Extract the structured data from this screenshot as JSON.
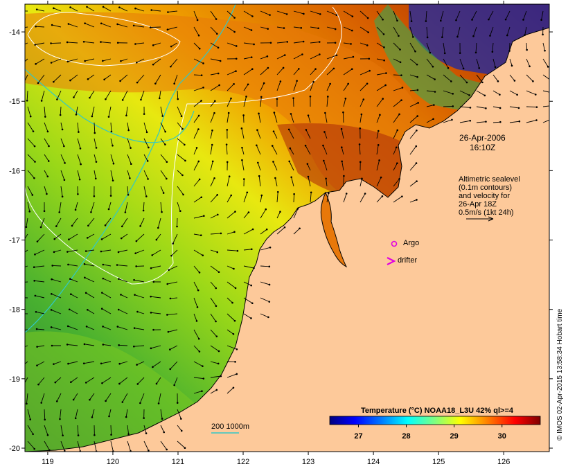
{
  "map": {
    "lon_range": [
      118.65,
      126.7
    ],
    "lat_range": [
      -20.05,
      -13.6
    ],
    "lon_ticks": [
      "119",
      "120",
      "121",
      "122",
      "123",
      "124",
      "125",
      "126"
    ],
    "lat_ticks": [
      "-14",
      "-15",
      "-16",
      "-17",
      "-18",
      "-19",
      "-20"
    ],
    "ocean_gradient": [
      "#2b7f3a",
      "#48b030",
      "#9ad818",
      "#e8e810",
      "#f0a000",
      "#d86000",
      "#a02000"
    ],
    "land_color": "#fdc99a",
    "deep_color": "#1010a0",
    "isobath_color": "#30c8c8",
    "contour_color": "#ffffff"
  },
  "annotations": {
    "timestamp_date": "26-Apr-2006",
    "timestamp_time": "16:10Z",
    "altimetry_lines": [
      "Altimetric sealevel",
      "(0.1m contours)",
      "and velocity for",
      "26-Apr 18Z",
      "0.5m/s (1kt 24h)"
    ],
    "argo_label": "Argo",
    "argo_color": "#e000e0",
    "drifter_label": "drifter",
    "drifter_color": "#e000e0",
    "isobath_label": "200  1000m"
  },
  "colorbar": {
    "title": "Temperature (°C) NOAA18_L3U 42% ql>=4",
    "range": [
      26.4,
      30.8
    ],
    "ticks": [
      "27",
      "28",
      "29",
      "30"
    ],
    "colors": [
      "#00007f",
      "#0000ff",
      "#007fff",
      "#00ffff",
      "#7fff7f",
      "#ffff00",
      "#ff7f00",
      "#ff0000",
      "#7f0000"
    ]
  },
  "credit": "© IMOS 02-Apr-2015 13:58:34 Hobart time"
}
